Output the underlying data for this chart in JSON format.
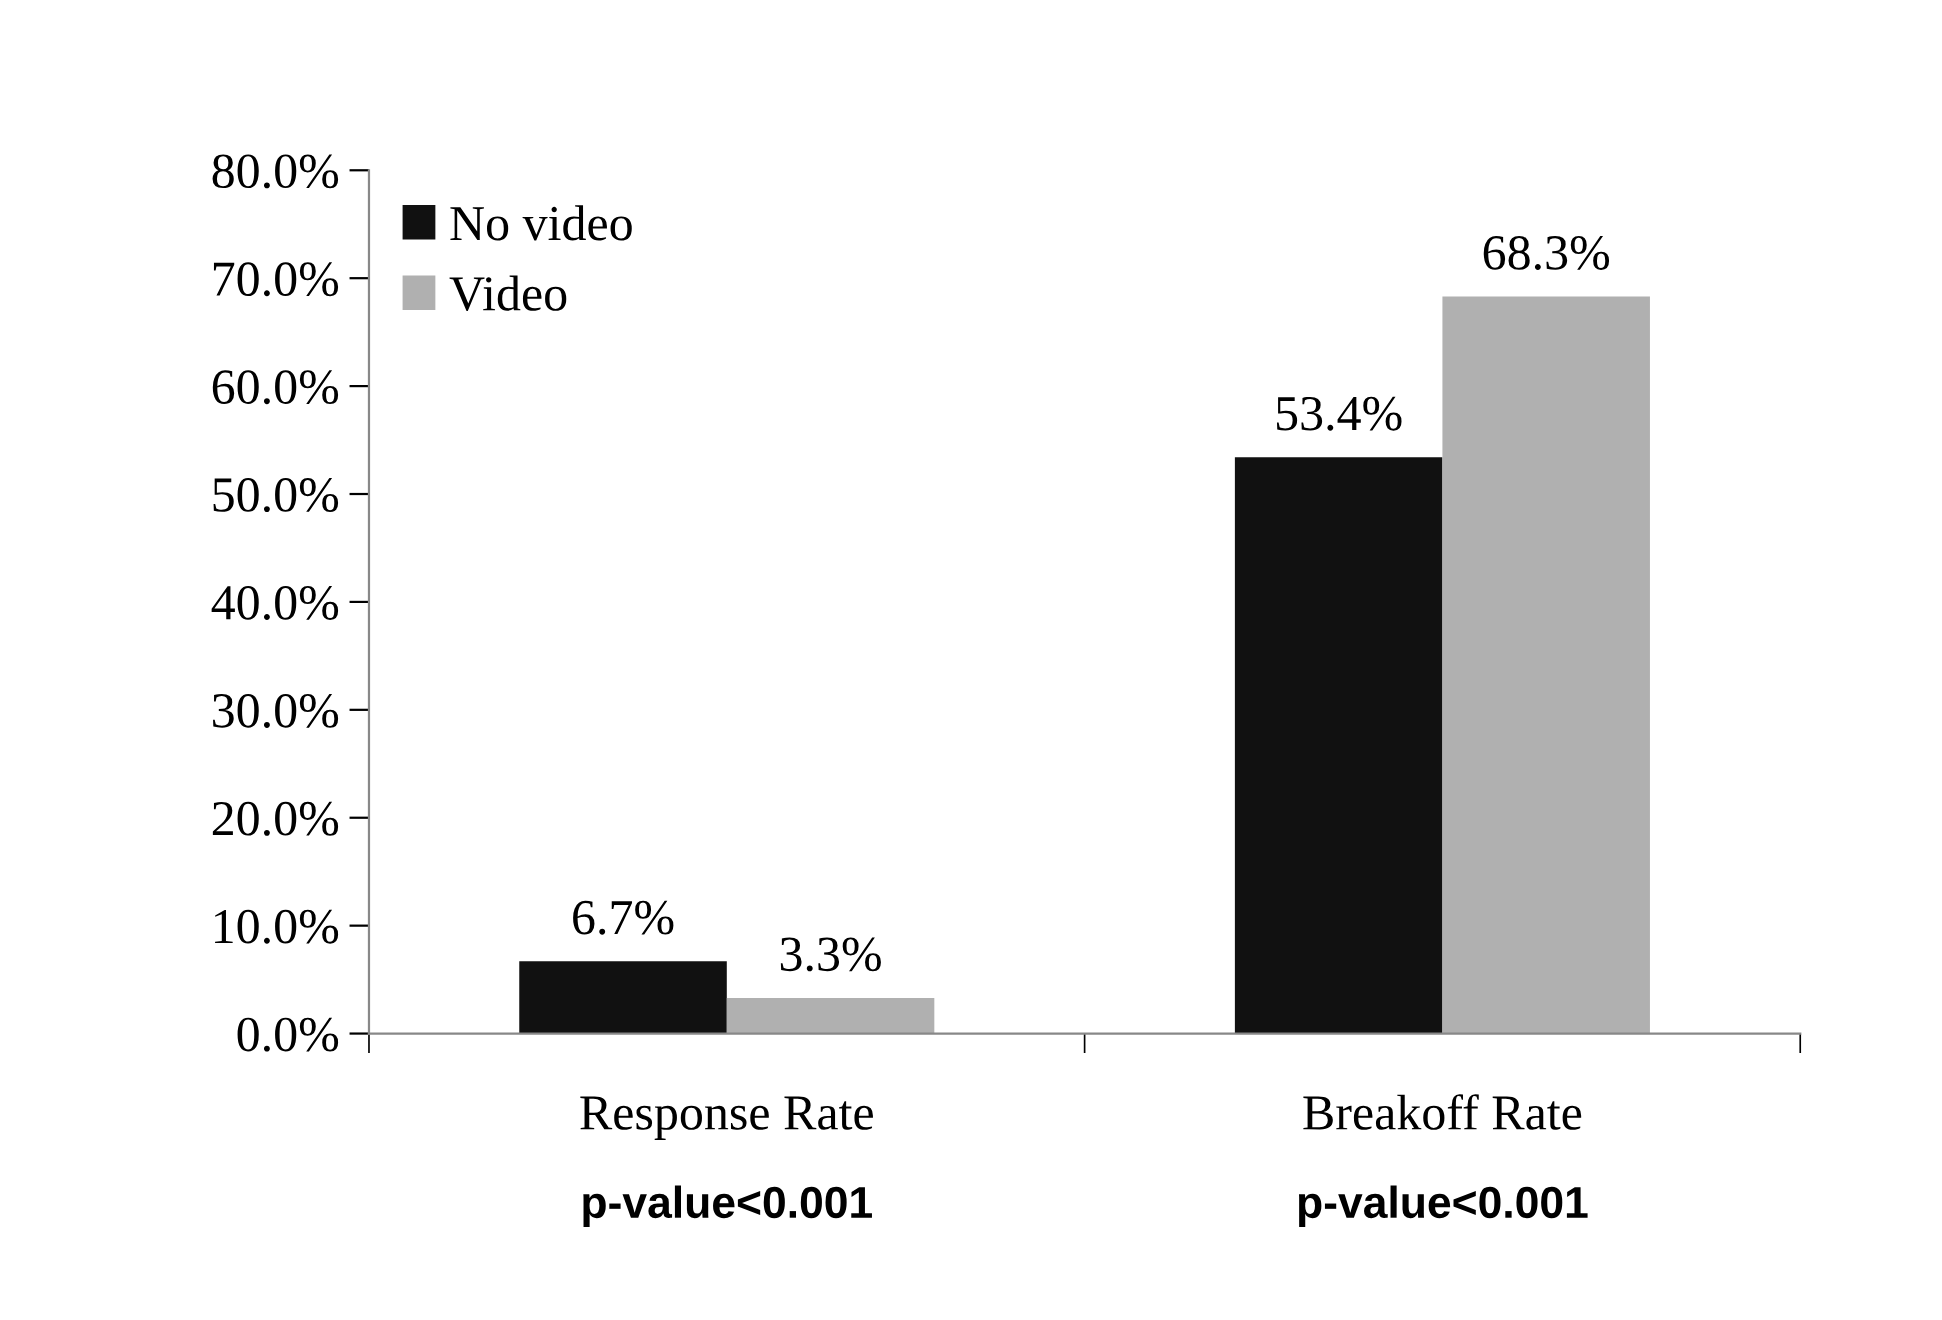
{
  "chart_data": {
    "type": "bar",
    "categories": [
      "Response Rate",
      "Breakoff Rate"
    ],
    "series": [
      {
        "name": "No video",
        "color": "#111111",
        "values": [
          6.7,
          53.4
        ],
        "value_labels": [
          "6.7%",
          "53.4%"
        ]
      },
      {
        "name": "Video",
        "color": "#b0b0b0",
        "values": [
          3.3,
          68.3
        ],
        "value_labels": [
          "3.3%",
          "68.3%"
        ]
      }
    ],
    "ylim": [
      0,
      80
    ],
    "yticks": [
      {
        "value": 0,
        "label": "0.0%"
      },
      {
        "value": 10,
        "label": "10.0%"
      },
      {
        "value": 20,
        "label": "20.0%"
      },
      {
        "value": 30,
        "label": "30.0%"
      },
      {
        "value": 40,
        "label": "40.0%"
      },
      {
        "value": 50,
        "label": "50.0%"
      },
      {
        "value": 60,
        "label": "60.0%"
      },
      {
        "value": 70,
        "label": "70.0%"
      },
      {
        "value": 80,
        "label": "80.0%"
      }
    ],
    "annotations": [
      "p-value<0.001",
      "p-value<0.001"
    ],
    "legend": "top left",
    "grid": false
  }
}
